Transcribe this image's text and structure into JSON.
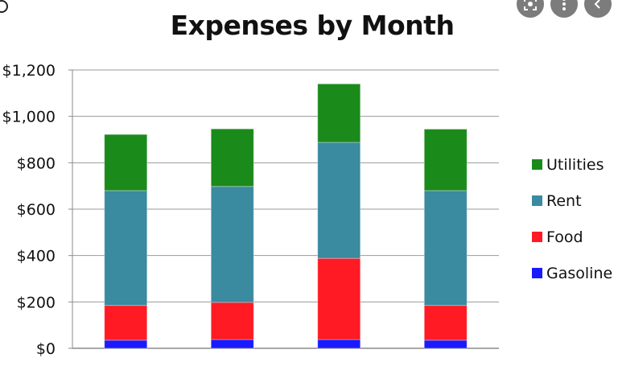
{
  "chart_data": {
    "type": "bar",
    "stacked": true,
    "title": "Expenses by Month",
    "categories": [
      "",
      "",
      "",
      ""
    ],
    "series": [
      {
        "name": "Gasoline",
        "color": "#1a1aff",
        "values": [
          35,
          38,
          38,
          35
        ]
      },
      {
        "name": "Food",
        "color": "#ff1a24",
        "values": [
          150,
          160,
          350,
          150
        ]
      },
      {
        "name": "Rent",
        "color": "#3a8aa0",
        "values": [
          495,
          500,
          500,
          495
        ]
      },
      {
        "name": "Utilities",
        "color": "#1a8a1a",
        "values": [
          242,
          248,
          252,
          265
        ]
      }
    ],
    "ylim": [
      0,
      1200
    ],
    "yticks": [
      0,
      200,
      400,
      600,
      800,
      1000,
      1200
    ],
    "ytick_labels": [
      "$0",
      "$200",
      "$400",
      "$600",
      "$800",
      "$1,000",
      "$1,200"
    ],
    "grid": true,
    "legend_position": "right",
    "legend_order": [
      "Utilities",
      "Rent",
      "Food",
      "Gasoline"
    ]
  },
  "ui": {
    "buttons": [
      {
        "name": "lens-search-button",
        "icon": "lens-icon"
      },
      {
        "name": "more-options-button",
        "icon": "more-vertical-icon"
      },
      {
        "name": "back-button",
        "icon": "chevron-left-icon"
      }
    ]
  }
}
